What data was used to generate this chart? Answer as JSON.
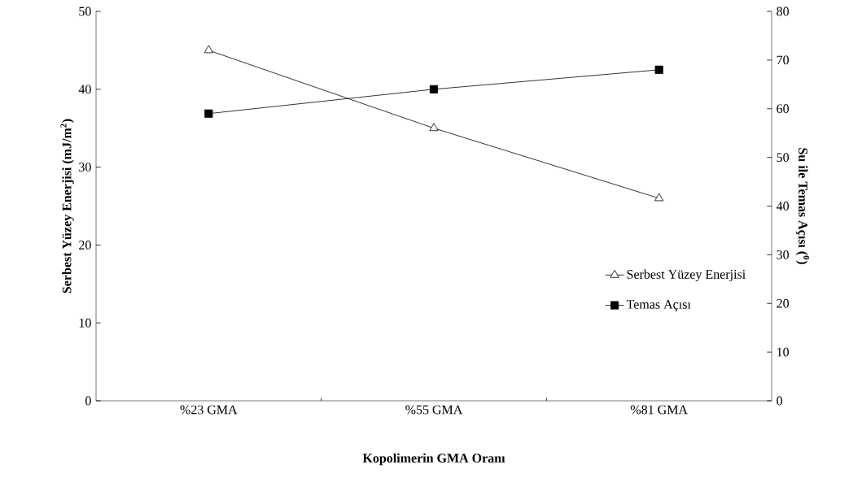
{
  "chart_data": {
    "type": "line",
    "categories": [
      "%23 GMA",
      "%55 GMA",
      "%81 GMA"
    ],
    "xlabel": "Kopolimerin  GMA Oranı",
    "ylabel": "Serbest Yüzey Enerjisi (mJ/m$^{2}$)",
    "y2label": "Su ile Temas Açısı ($^{0}$)",
    "series": [
      {
        "name": "Serbest Yüzey Enerjisi",
        "color": "#000000",
        "values": [
          45,
          35,
          26
        ],
        "marker": "triangle"
      },
      {
        "name": "Temas Açısı",
        "color": "#000000",
        "values": [
          59,
          64,
          68
        ],
        "marker": "square",
        "axis": "y2"
      }
    ],
    "ylim": [
      0,
      50
    ],
    "yticks": [
      0,
      10,
      20,
      30,
      40,
      50
    ],
    "y2lim": [
      0,
      80
    ],
    "y2ticks": [
      0,
      10,
      20,
      30,
      40,
      50,
      60,
      70,
      80
    ],
    "grid": false,
    "legend": "right",
    "line_style": "solid"
  }
}
